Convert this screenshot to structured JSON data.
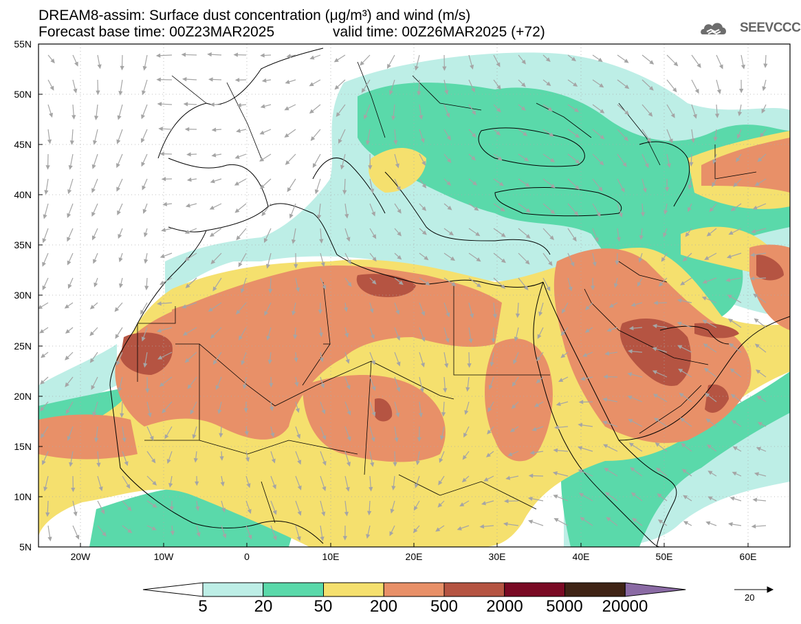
{
  "header": {
    "title_line1": "DREAM8-assim: Surface dust concentration (μg/m³) and wind (m/s)",
    "title_line2_base": "Forecast base time: 00Z23MAR2025",
    "title_line2_valid": "valid time: 00Z26MAR2025 (+72)",
    "logo_text": "SEEVCCC"
  },
  "map": {
    "lat_labels": [
      "55N",
      "50N",
      "45N",
      "40N",
      "35N",
      "30N",
      "25N",
      "20N",
      "15N",
      "10N",
      "5N"
    ],
    "lon_labels": [
      "20W",
      "10W",
      "0",
      "10E",
      "20E",
      "30E",
      "40E",
      "50E",
      "60E"
    ],
    "lat_range": [
      5,
      55
    ],
    "lon_range": [
      -25,
      65
    ],
    "grid": true
  },
  "colorbar": {
    "labels": [
      "5",
      "20",
      "50",
      "200",
      "500",
      "2000",
      "5000",
      "20000"
    ],
    "colors": [
      "#ffffff",
      "#bdeee6",
      "#5ad9aa",
      "#f5e06e",
      "#e89068",
      "#b55442",
      "#7a0a24",
      "#3f2315",
      "#8a6aa4"
    ],
    "wind_reference": "20"
  }
}
